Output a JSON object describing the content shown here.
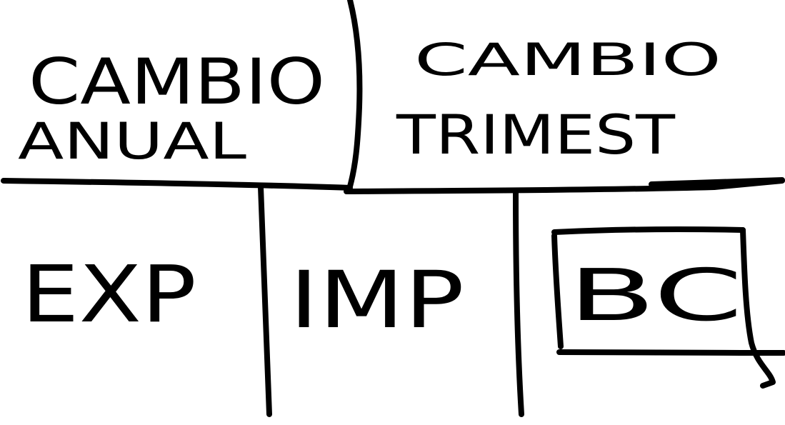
{
  "cells": {
    "annual_line1": "CAMBIO",
    "annual_line2": "ANUAL",
    "quarterly_line1": "CAMBIO",
    "quarterly_line2": "TRIMEST",
    "exp": "EXP",
    "imp": "IMP",
    "bc": "BC"
  },
  "colors": {
    "ink": "#000000",
    "paper": "#ffffff"
  }
}
